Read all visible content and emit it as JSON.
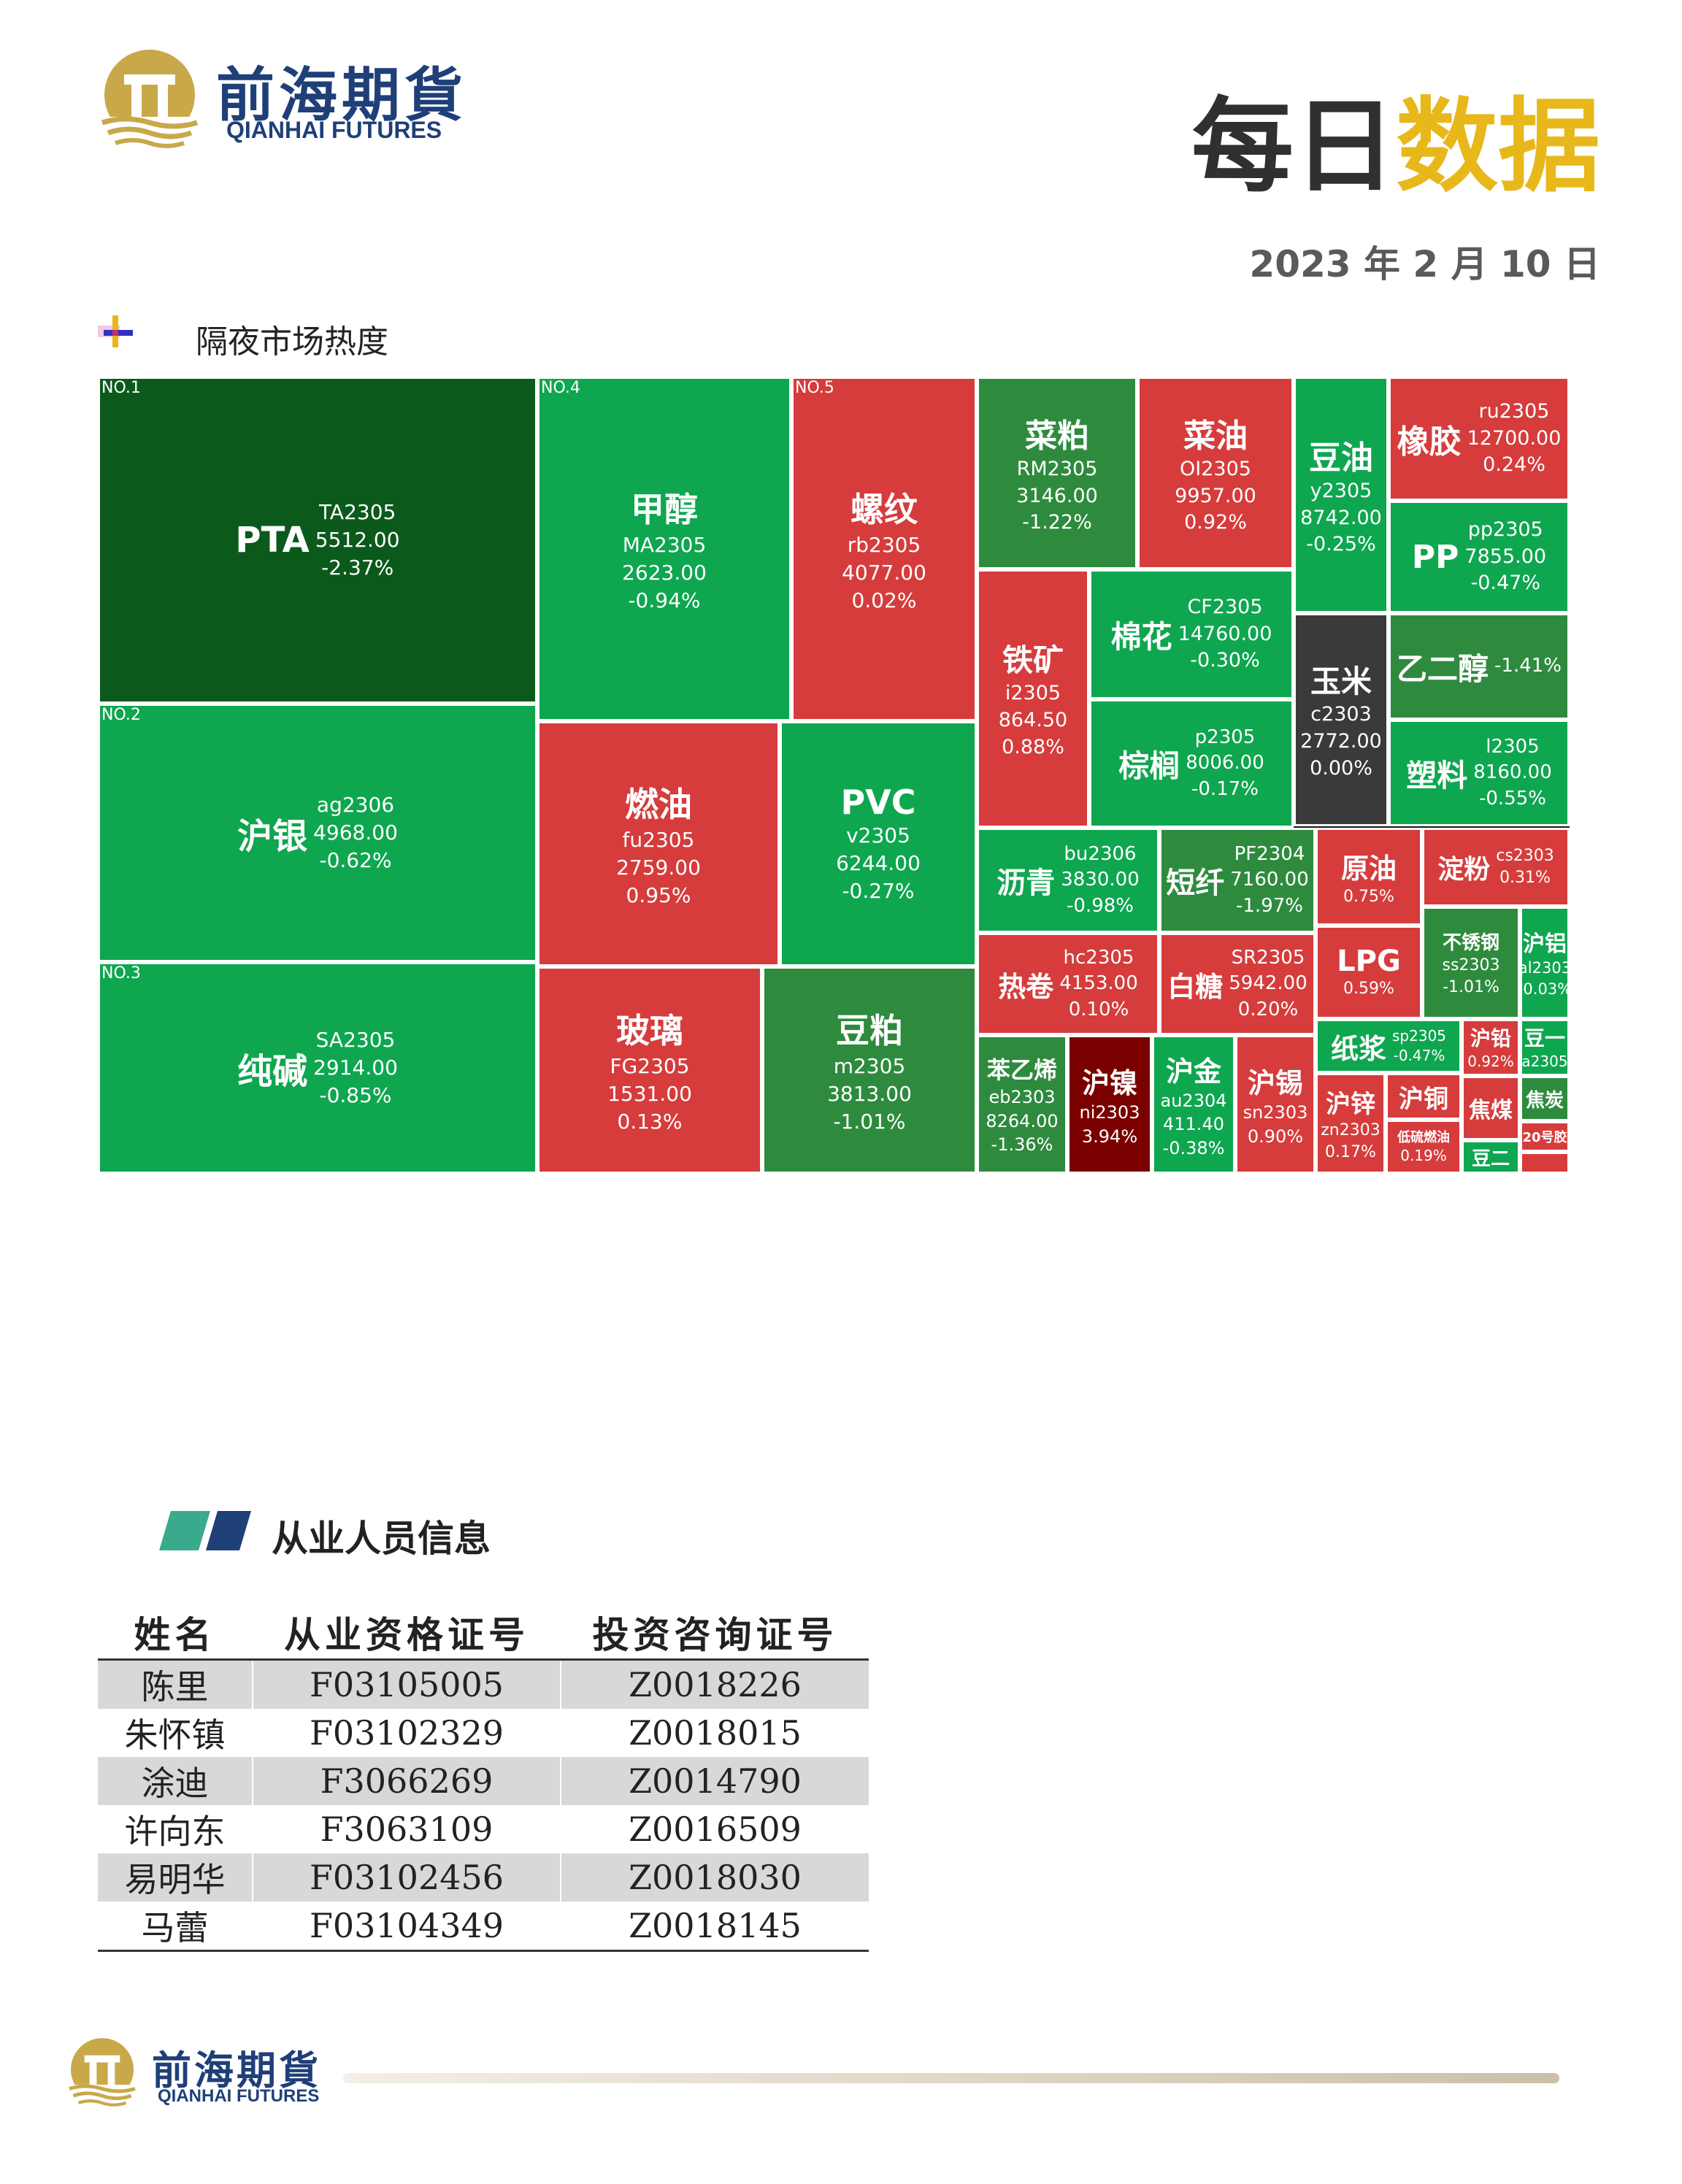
{
  "header": {
    "brand_cn": "前海期貨",
    "brand_en": "QIANHAI FUTURES",
    "title_part1": "每日",
    "title_part2": "数据",
    "date": "2023 年 2 月 10 日"
  },
  "section1": {
    "title": "隔夜市场热度"
  },
  "section2": {
    "title": "从业人员信息"
  },
  "colors": {
    "green": "#0fa650",
    "green_mid": "#2e8b3e",
    "green_dark": "#0b5a1c",
    "red": "#d63c3c",
    "red_dark": "#7a0000",
    "gray_dark": "#3a3a3a",
    "brand_navy": "#1f3f78",
    "brand_gold": "#e8b71a",
    "teal": "#3aaa8c"
  },
  "heatmap_tiles": [
    {
      "rank": "NO.1",
      "name": "PTA",
      "code": "TA2305",
      "price": "5512.00",
      "change": "-2.37%",
      "color": "green_dark"
    },
    {
      "rank": "NO.2",
      "name": "沪银",
      "code": "ag2306",
      "price": "4968.00",
      "change": "-0.62%",
      "color": "green"
    },
    {
      "rank": "NO.3",
      "name": "纯碱",
      "code": "SA2305",
      "price": "2914.00",
      "change": "-0.85%",
      "color": "green"
    },
    {
      "rank": "NO.4",
      "name": "甲醇",
      "code": "MA2305",
      "price": "2623.00",
      "change": "-0.94%",
      "color": "green"
    },
    {
      "rank": "NO.5",
      "name": "螺纹",
      "code": "rb2305",
      "price": "4077.00",
      "change": "0.02%",
      "color": "red"
    },
    {
      "rank": "",
      "name": "燃油",
      "code": "fu2305",
      "price": "2759.00",
      "change": "0.95%",
      "color": "red"
    },
    {
      "rank": "",
      "name": "PVC",
      "code": "v2305",
      "price": "6244.00",
      "change": "-0.27%",
      "color": "green"
    },
    {
      "rank": "",
      "name": "玻璃",
      "code": "FG2305",
      "price": "1531.00",
      "change": "0.13%",
      "color": "red"
    },
    {
      "rank": "",
      "name": "豆粕",
      "code": "m2305",
      "price": "3813.00",
      "change": "-1.01%",
      "color": "green_mid"
    },
    {
      "rank": "",
      "name": "菜粕",
      "code": "RM2305",
      "price": "3146.00",
      "change": "-1.22%",
      "color": "green_mid"
    },
    {
      "rank": "",
      "name": "菜油",
      "code": "OI2305",
      "price": "9957.00",
      "change": "0.92%",
      "color": "red"
    },
    {
      "rank": "",
      "name": "豆油",
      "code": "y2305",
      "price": "8742.00",
      "change": "-0.25%",
      "color": "green"
    },
    {
      "rank": "",
      "name": "橡胶",
      "code": "ru2305",
      "price": "12700.00",
      "change": "0.24%",
      "color": "red"
    },
    {
      "rank": "",
      "name": "PP",
      "code": "pp2305",
      "price": "7855.00",
      "change": "-0.47%",
      "color": "green"
    },
    {
      "rank": "",
      "name": "铁矿",
      "code": "i2305",
      "price": "864.50",
      "change": "0.88%",
      "color": "red"
    },
    {
      "rank": "",
      "name": "棉花",
      "code": "CF2305",
      "price": "14760.00",
      "change": "-0.30%",
      "color": "green"
    },
    {
      "rank": "",
      "name": "玉米",
      "code": "c2303",
      "price": "2772.00",
      "change": "0.00%",
      "color": "gray_dark"
    },
    {
      "rank": "",
      "name": "乙二醇",
      "code": "",
      "price": "",
      "change": "-1.41%",
      "color": "green_mid"
    },
    {
      "rank": "",
      "name": "棕榈",
      "code": "p2305",
      "price": "8006.00",
      "change": "-0.17%",
      "color": "green"
    },
    {
      "rank": "",
      "name": "塑料",
      "code": "l2305",
      "price": "8160.00",
      "change": "-0.55%",
      "color": "green"
    },
    {
      "rank": "",
      "name": "沥青",
      "code": "bu2306",
      "price": "3830.00",
      "change": "-0.98%",
      "color": "green"
    },
    {
      "rank": "",
      "name": "短纤",
      "code": "PF2304",
      "price": "7160.00",
      "change": "-1.97%",
      "color": "green_mid"
    },
    {
      "rank": "",
      "name": "原油",
      "code": "",
      "price": "",
      "change": "0.75%",
      "color": "red"
    },
    {
      "rank": "",
      "name": "淀粉",
      "code": "cs2303",
      "price": "",
      "change": "0.31%",
      "color": "red"
    },
    {
      "rank": "",
      "name": "不锈钢",
      "code": "ss2303",
      "price": "",
      "change": "-1.01%",
      "color": "green_mid"
    },
    {
      "rank": "",
      "name": "沪铝",
      "code": "al2303",
      "price": "",
      "change": "-0.03%",
      "color": "green"
    },
    {
      "rank": "",
      "name": "LPG",
      "code": "",
      "price": "",
      "change": "0.59%",
      "color": "red"
    },
    {
      "rank": "",
      "name": "热卷",
      "code": "hc2305",
      "price": "4153.00",
      "change": "0.10%",
      "color": "red"
    },
    {
      "rank": "",
      "name": "白糖",
      "code": "SR2305",
      "price": "5942.00",
      "change": "0.20%",
      "color": "red"
    },
    {
      "rank": "",
      "name": "苯乙烯",
      "code": "eb2303",
      "price": "8264.00",
      "change": "-1.36%",
      "color": "green_mid"
    },
    {
      "rank": "",
      "name": "沪镍",
      "code": "ni2303",
      "price": "",
      "change": "3.94%",
      "color": "red_dark"
    },
    {
      "rank": "",
      "name": "沪金",
      "code": "au2304",
      "price": "411.40",
      "change": "-0.38%",
      "color": "green"
    },
    {
      "rank": "",
      "name": "沪锡",
      "code": "sn2303",
      "price": "",
      "change": "0.90%",
      "color": "red"
    },
    {
      "rank": "",
      "name": "纸浆",
      "code": "sp2305",
      "price": "",
      "change": "-0.47%",
      "color": "green"
    },
    {
      "rank": "",
      "name": "沪铅",
      "code": "",
      "price": "",
      "change": "0.92%",
      "color": "red"
    },
    {
      "rank": "",
      "name": "豆一",
      "code": "a2305",
      "price": "",
      "change": "",
      "color": "green"
    },
    {
      "rank": "",
      "name": "沪锌",
      "code": "zn2303",
      "price": "",
      "change": "0.17%",
      "color": "red"
    },
    {
      "rank": "",
      "name": "沪铜",
      "code": "",
      "price": "",
      "change": "",
      "color": "red"
    },
    {
      "rank": "",
      "name": "低硫燃油",
      "code": "",
      "price": "",
      "change": "0.19%",
      "color": "red"
    },
    {
      "rank": "",
      "name": "焦煤",
      "code": "",
      "price": "",
      "change": "",
      "color": "red"
    },
    {
      "rank": "",
      "name": "焦炭",
      "code": "",
      "price": "",
      "change": "",
      "color": "green_mid"
    },
    {
      "rank": "",
      "name": "豆二",
      "code": "",
      "price": "",
      "change": "",
      "color": "green"
    },
    {
      "rank": "",
      "name": "20号胶",
      "code": "",
      "price": "",
      "change": "",
      "color": "red"
    },
    {
      "rank": "",
      "name": "",
      "code": "",
      "price": "",
      "change": "",
      "color": "red"
    }
  ],
  "staff": {
    "headers": [
      "姓名",
      "从业资格证号",
      "投资咨询证号"
    ],
    "rows": [
      [
        "陈里",
        "F03105005",
        "Z0018226"
      ],
      [
        "朱怀镇",
        "F03102329",
        "Z0018015"
      ],
      [
        "涂迪",
        "F3066269",
        "Z0014790"
      ],
      [
        "许向东",
        "F3063109",
        "Z0016509"
      ],
      [
        "易明华",
        "F03102456",
        "Z0018030"
      ],
      [
        "马蕾",
        "F03104349",
        "Z0018145"
      ]
    ]
  }
}
